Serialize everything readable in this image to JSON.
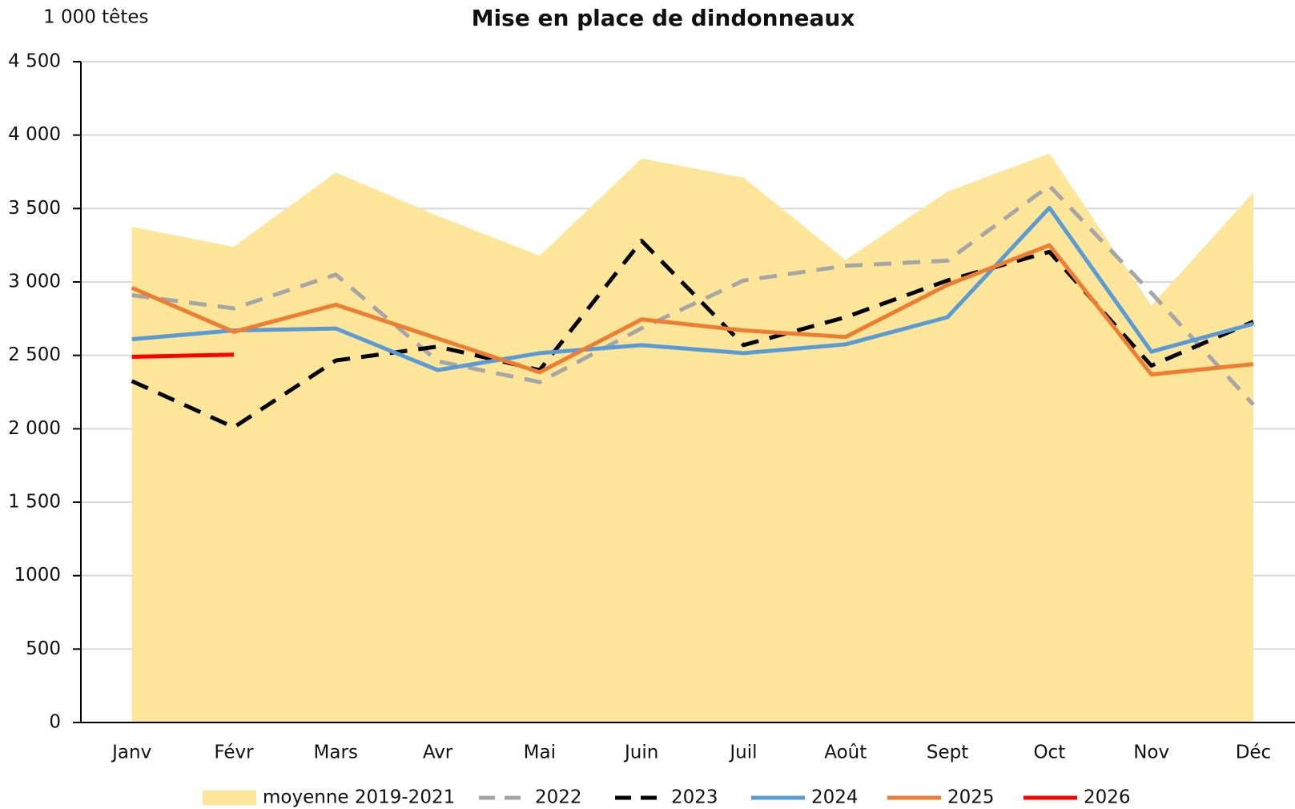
{
  "chart_data": {
    "type": "line",
    "title": "Mise en place de dindonneaux",
    "y_axis_label": "1 000 têtes",
    "categories": [
      "Janv",
      "Févr",
      "Mars",
      "Avr",
      "Mai",
      "Juin",
      "Juil",
      "Août",
      "Sept",
      "Oct",
      "Nov",
      "Déc"
    ],
    "series": [
      {
        "name": "moyenne 2019-2021",
        "kind": "area",
        "color": "#fde59a",
        "values": [
          3375,
          3240,
          3745,
          3450,
          3178,
          3840,
          3710,
          3150,
          3615,
          3875,
          2840,
          3610
        ]
      },
      {
        "name": "2022",
        "dash": true,
        "color": "#a6a6a6",
        "values": [
          2910,
          2820,
          3050,
          2460,
          2318,
          2685,
          3010,
          3110,
          3145,
          3655,
          2925,
          2165
        ]
      },
      {
        "name": "2023",
        "dash": true,
        "color": "#000000",
        "values": [
          2325,
          2010,
          2465,
          2560,
          2400,
          3280,
          2570,
          2760,
          3010,
          3205,
          2430,
          2730
        ]
      },
      {
        "name": "2024",
        "color": "#5b9bd5",
        "values": [
          2610,
          2670,
          2683,
          2400,
          2515,
          2570,
          2515,
          2575,
          2760,
          3505,
          2525,
          2715
        ]
      },
      {
        "name": "2025",
        "color": "#ed7d31",
        "values": [
          2960,
          2660,
          2845,
          2615,
          2385,
          2745,
          2670,
          2625,
          2980,
          3250,
          2370,
          2440
        ]
      },
      {
        "name": "2026",
        "color": "#ff0000",
        "values": [
          2490,
          2505,
          null,
          null,
          null,
          null,
          null,
          null,
          null,
          null,
          null,
          null
        ]
      }
    ],
    "ylim": [
      0,
      4500
    ],
    "yticks": [
      0,
      500,
      {
        "value": 1000,
        "label": "1000"
      },
      {
        "value": 1500,
        "label": "1 500"
      },
      {
        "value": 2000,
        "label": "2 000"
      },
      {
        "value": 2500,
        "label": "2 500"
      },
      {
        "value": 3000,
        "label": "3 000"
      },
      {
        "value": 3500,
        "label": "3 500"
      },
      {
        "value": 4000,
        "label": "4 000"
      },
      {
        "value": 4500,
        "label": "4 500"
      }
    ],
    "grid": true
  }
}
